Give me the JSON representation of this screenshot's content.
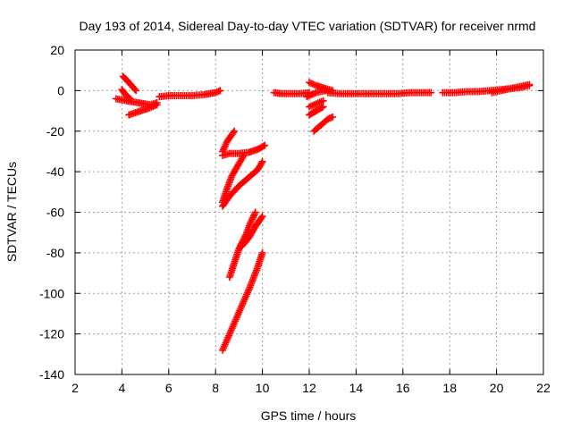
{
  "chart_data": {
    "type": "scatter",
    "title": "Day 193 of 2014, Sidereal Day-to-day VTEC variation (SDTVAR) for receiver nrmd",
    "xlabel": "GPS time / hours",
    "ylabel": "SDTVAR / TECUs",
    "xlim": [
      2,
      22
    ],
    "ylim": [
      -140,
      20
    ],
    "xticks": [
      2,
      4,
      6,
      8,
      10,
      12,
      14,
      16,
      18,
      20,
      22
    ],
    "yticks": [
      20,
      0,
      -20,
      -40,
      -60,
      -80,
      -100,
      -120,
      -140
    ],
    "grid": true,
    "marker": "plus",
    "color": "#ff0000",
    "series": [
      {
        "name": "seg-1",
        "points": [
          [
            4.05,
            7
          ],
          [
            4.3,
            4
          ],
          [
            4.6,
            0
          ]
        ]
      },
      {
        "name": "seg-2",
        "points": [
          [
            3.75,
            -4
          ],
          [
            4.2,
            -5
          ],
          [
            4.7,
            -6
          ],
          [
            5.2,
            -7
          ],
          [
            5.5,
            -6
          ]
        ]
      },
      {
        "name": "seg-3",
        "points": [
          [
            4.3,
            -12
          ],
          [
            4.8,
            -10
          ],
          [
            5.2,
            -8.5
          ],
          [
            5.5,
            -7
          ]
        ]
      },
      {
        "name": "seg-4",
        "points": [
          [
            4.0,
            0.5
          ],
          [
            4.15,
            -2
          ],
          [
            4.35,
            -4
          ]
        ]
      },
      {
        "name": "seg-5",
        "points": [
          [
            5.6,
            -3
          ],
          [
            6.0,
            -2.5
          ],
          [
            6.5,
            -2.5
          ],
          [
            7.0,
            -2.5
          ],
          [
            7.5,
            -2
          ],
          [
            8.0,
            -1
          ],
          [
            8.2,
            0
          ]
        ]
      },
      {
        "name": "seg-6",
        "points": [
          [
            8.3,
            -32
          ],
          [
            8.6,
            -31
          ],
          [
            9.0,
            -31
          ],
          [
            9.4,
            -30.5
          ],
          [
            9.8,
            -29
          ],
          [
            10.1,
            -27
          ]
        ]
      },
      {
        "name": "seg-7",
        "points": [
          [
            8.3,
            -30
          ],
          [
            8.5,
            -25
          ],
          [
            8.8,
            -20
          ]
        ]
      },
      {
        "name": "seg-8",
        "points": [
          [
            8.3,
            -57
          ],
          [
            8.6,
            -52
          ],
          [
            9.0,
            -47
          ],
          [
            9.4,
            -43
          ],
          [
            9.8,
            -39
          ],
          [
            10.0,
            -35
          ]
        ]
      },
      {
        "name": "seg-9",
        "points": [
          [
            8.3,
            -55
          ],
          [
            8.5,
            -48
          ],
          [
            8.7,
            -42
          ],
          [
            9.0,
            -36
          ],
          [
            9.2,
            -32
          ]
        ]
      },
      {
        "name": "seg-10",
        "points": [
          [
            8.6,
            -92
          ],
          [
            8.8,
            -85
          ],
          [
            9.0,
            -78
          ],
          [
            9.3,
            -71
          ],
          [
            9.5,
            -65
          ],
          [
            9.7,
            -60
          ]
        ]
      },
      {
        "name": "seg-11",
        "points": [
          [
            9.1,
            -77
          ],
          [
            9.4,
            -73
          ],
          [
            9.7,
            -67
          ],
          [
            10.0,
            -62
          ]
        ]
      },
      {
        "name": "seg-12",
        "points": [
          [
            8.3,
            -128
          ],
          [
            8.6,
            -120
          ],
          [
            8.9,
            -112
          ],
          [
            9.2,
            -104
          ],
          [
            9.5,
            -96
          ],
          [
            9.8,
            -87
          ],
          [
            10.0,
            -80
          ]
        ]
      },
      {
        "name": "seg-13",
        "points": [
          [
            10.5,
            -1
          ],
          [
            10.8,
            -1.5
          ],
          [
            11.2,
            -1.5
          ],
          [
            11.6,
            -1.5
          ],
          [
            12.0,
            -1
          ]
        ]
      },
      {
        "name": "seg-14",
        "points": [
          [
            12.0,
            4
          ],
          [
            12.3,
            2.5
          ],
          [
            12.7,
            1
          ],
          [
            13.0,
            0
          ]
        ]
      },
      {
        "name": "seg-15",
        "points": [
          [
            11.9,
            -3
          ],
          [
            12.3,
            -1
          ],
          [
            12.7,
            0
          ]
        ]
      },
      {
        "name": "seg-16",
        "points": [
          [
            12.0,
            -8
          ],
          [
            12.3,
            -6.5
          ],
          [
            12.6,
            -5
          ]
        ]
      },
      {
        "name": "seg-17",
        "points": [
          [
            12.0,
            -12
          ],
          [
            12.3,
            -10
          ],
          [
            12.6,
            -8
          ]
        ]
      },
      {
        "name": "seg-18",
        "points": [
          [
            12.2,
            -20
          ],
          [
            12.5,
            -17
          ],
          [
            12.8,
            -14
          ],
          [
            13.0,
            -13
          ]
        ]
      },
      {
        "name": "seg-19",
        "points": [
          [
            12.8,
            -1
          ],
          [
            13.3,
            -1.5
          ],
          [
            13.8,
            -1.5
          ],
          [
            14.3,
            -1.5
          ],
          [
            14.8,
            -1.5
          ],
          [
            15.3,
            -1.5
          ],
          [
            15.8,
            -1.5
          ],
          [
            16.3,
            -1
          ],
          [
            16.8,
            -1
          ],
          [
            17.2,
            -1
          ]
        ]
      },
      {
        "name": "seg-20",
        "points": [
          [
            17.7,
            -1
          ],
          [
            18.2,
            -1
          ],
          [
            18.7,
            -0.5
          ],
          [
            19.2,
            -0.5
          ],
          [
            19.7,
            0
          ],
          [
            20.2,
            0.5
          ],
          [
            20.6,
            1
          ],
          [
            21.0,
            1.5
          ],
          [
            21.4,
            2.5
          ]
        ]
      },
      {
        "name": "seg-21",
        "points": [
          [
            19.8,
            -1
          ],
          [
            20.2,
            0
          ],
          [
            20.6,
            1
          ],
          [
            21.0,
            2
          ],
          [
            21.4,
            3
          ]
        ]
      }
    ]
  }
}
